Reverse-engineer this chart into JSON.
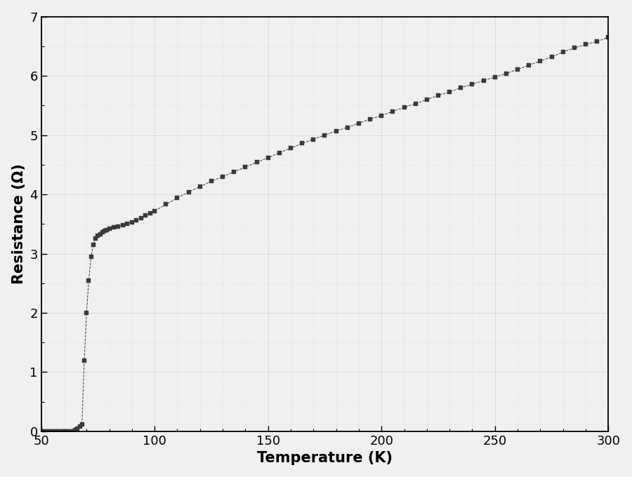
{
  "title": "",
  "xlabel": "Temperature (K)",
  "ylabel": "Resistance (Ω)",
  "xlim": [
    50,
    300
  ],
  "ylim": [
    0,
    7
  ],
  "xticks": [
    50,
    100,
    150,
    200,
    250,
    300
  ],
  "yticks": [
    0,
    1,
    2,
    3,
    4,
    5,
    6,
    7
  ],
  "background_color": "#f0f0f0",
  "line_color": "#3a3a3a",
  "marker": "s",
  "marker_size": 5,
  "line_style": "--",
  "line_width": 0.7,
  "xlabel_fontsize": 15,
  "ylabel_fontsize": 15,
  "tick_fontsize": 13,
  "data_x": [
    50,
    51,
    52,
    53,
    54,
    55,
    56,
    57,
    58,
    59,
    60,
    61,
    62,
    63,
    64,
    65,
    66,
    67,
    68,
    69,
    70,
    71,
    72,
    73,
    74,
    75,
    76,
    77,
    78,
    79,
    80,
    82,
    84,
    86,
    88,
    90,
    92,
    94,
    96,
    98,
    100,
    105,
    110,
    115,
    120,
    125,
    130,
    135,
    140,
    145,
    150,
    155,
    160,
    165,
    170,
    175,
    180,
    185,
    190,
    195,
    200,
    205,
    210,
    215,
    220,
    225,
    230,
    235,
    240,
    245,
    250,
    255,
    260,
    265,
    270,
    275,
    280,
    285,
    290,
    295,
    300
  ],
  "data_y": [
    0.0,
    0.0,
    0.0,
    0.0,
    0.0,
    0.0,
    0.0,
    0.0,
    0.0,
    0.0,
    0.0,
    0.0,
    0.0,
    0.0,
    0.0,
    0.02,
    0.05,
    0.08,
    0.12,
    1.2,
    2.0,
    2.55,
    2.95,
    3.15,
    3.25,
    3.3,
    3.33,
    3.36,
    3.38,
    3.4,
    3.42,
    3.44,
    3.46,
    3.48,
    3.5,
    3.53,
    3.56,
    3.6,
    3.64,
    3.68,
    3.72,
    3.83,
    3.94,
    4.04,
    4.13,
    4.22,
    4.3,
    4.38,
    4.46,
    4.54,
    4.62,
    4.7,
    4.78,
    4.86,
    4.93,
    5.0,
    5.07,
    5.13,
    5.2,
    5.27,
    5.33,
    5.4,
    5.47,
    5.53,
    5.6,
    5.67,
    5.73,
    5.8,
    5.86,
    5.92,
    5.98,
    6.04,
    6.11,
    6.18,
    6.25,
    6.32,
    6.4,
    6.47,
    6.53,
    6.58,
    6.65
  ]
}
